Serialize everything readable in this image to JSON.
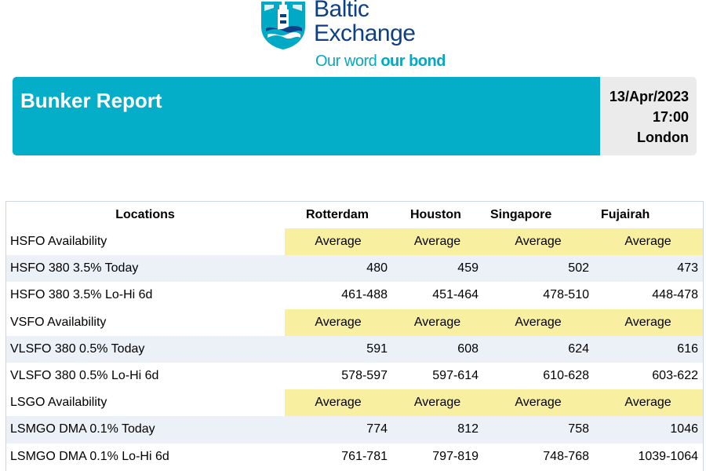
{
  "logo": {
    "name_line1": "Baltic",
    "name_line2": "Exchange",
    "tagline_light": "Our word ",
    "tagline_bold": "our bond",
    "brand_navy": "#0d3f86",
    "brand_teal": "#00a9c6"
  },
  "banner": {
    "title": "Bunker Report",
    "date": "13/Apr/2023",
    "time": "17:00",
    "location": "London",
    "accent": "#05aec8"
  },
  "table": {
    "headers": {
      "locations": "Locations",
      "rotterdam": "Rotterdam",
      "houston": "Houston",
      "singapore": "Singapore",
      "fujairah": "Fujairah"
    },
    "rows": [
      {
        "label": "HSFO Availability",
        "values": [
          "Average",
          "Average",
          "Average",
          "Average"
        ]
      },
      {
        "label": "HSFO 380 3.5% Today",
        "values": [
          "480",
          "459",
          "502",
          "473"
        ]
      },
      {
        "label": "HSFO 380 3.5% Lo-Hi 6d",
        "values": [
          "461-488",
          "451-464",
          "478-510",
          "448-478"
        ]
      },
      {
        "label": "VSFO Availability",
        "values": [
          "Average",
          "Average",
          "Average",
          "Average"
        ]
      },
      {
        "label": "VLSFO 380 0.5% Today",
        "values": [
          "591",
          "608",
          "624",
          "616"
        ]
      },
      {
        "label": "VLSFO 380 0.5% Lo-Hi 6d",
        "values": [
          "578-597",
          "597-614",
          "610-628",
          "603-622"
        ]
      },
      {
        "label": "LSGO Availability",
        "values": [
          "Average",
          "Average",
          "Average",
          "Average"
        ]
      },
      {
        "label": "LSMGO DMA 0.1% Today",
        "values": [
          "774",
          "812",
          "758",
          "1046"
        ]
      },
      {
        "label": "LSMGO DMA 0.1% Lo-Hi 6d",
        "values": [
          "761-781",
          "797-819",
          "748-768",
          "1039-1064"
        ]
      }
    ],
    "availability_color": "#f8efa1",
    "shade_color": "#ecf1f8"
  }
}
